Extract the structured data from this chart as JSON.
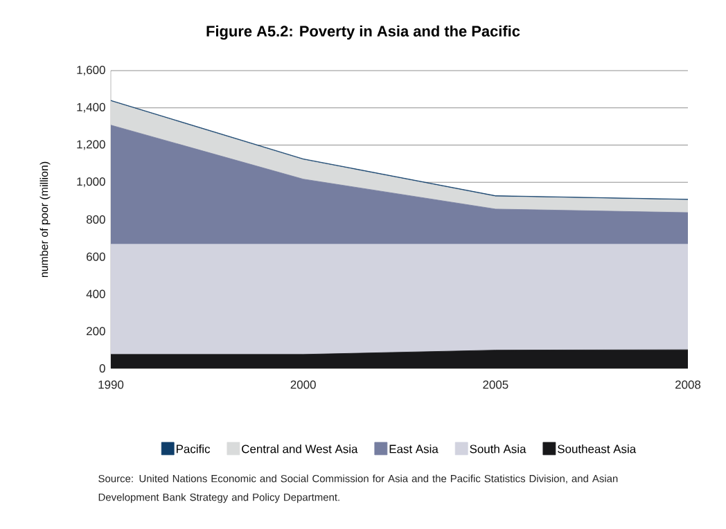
{
  "chart_data": {
    "type": "area",
    "stacked": true,
    "title": "Figure A5.2: Poverty in Asia and the Pacific",
    "ylabel": "number of poor (million)",
    "categories": [
      "1990",
      "2000",
      "2005",
      "2008"
    ],
    "series": [
      {
        "name": "Southeast Asia",
        "color": "#18181a",
        "values": [
          75,
          75,
          98,
          100
        ]
      },
      {
        "name": "South Asia",
        "color": "#d2d3df",
        "values": [
          592,
          592,
          569,
          567
        ]
      },
      {
        "name": "East Asia",
        "color": "#767ea0",
        "values": [
          640,
          350,
          189,
          170
        ]
      },
      {
        "name": "Central and West Asia",
        "color": "#d9dbdb",
        "values": [
          128,
          104,
          67,
          67
        ]
      },
      {
        "name": "Pacific",
        "color": "#0f3e6a",
        "values": [
          5,
          5,
          5,
          5
        ]
      }
    ],
    "ylim": [
      0,
      1600
    ],
    "yticks": [
      0,
      200,
      400,
      600,
      800,
      {
        "value": 1000,
        "label": "1,000"
      },
      {
        "value": 1200,
        "label": "1,200"
      },
      {
        "value": 1400,
        "label": "1,400"
      },
      {
        "value": 1600,
        "label": "1,600"
      }
    ],
    "grid": "y",
    "legend": "bottom",
    "annotations": [
      "Source: United Nations Economic and Social Commission for Asia and the Pacific Statistics Division, and Asian Development Bank Strategy and Policy Department."
    ]
  }
}
